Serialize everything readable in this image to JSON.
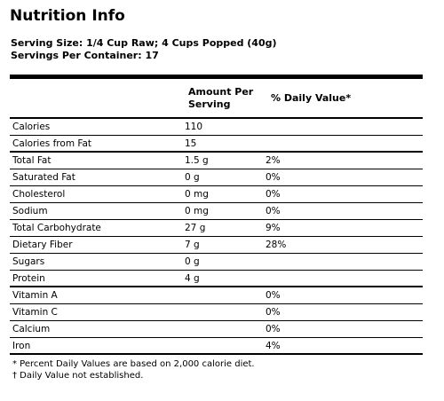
{
  "title": "Nutrition Info",
  "serving_size": "Serving Size: 1/4 Cup Raw; 4 Cups Popped (40g)",
  "servings_per_container": "Servings Per Container: 17",
  "headers": {
    "amount_line1": "Amount Per",
    "amount_line2": "Serving",
    "daily_value": "% Daily Value*"
  },
  "rows": [
    {
      "name": "Calories",
      "amount": "110",
      "dv": ""
    },
    {
      "name": "Calories from Fat",
      "amount": "15",
      "dv": ""
    },
    {
      "name": "Total Fat",
      "amount": "1.5 g",
      "dv": "2%"
    },
    {
      "name": "Saturated Fat",
      "amount": "0 g",
      "dv": "0%"
    },
    {
      "name": "Cholesterol",
      "amount": "0 mg",
      "dv": "0%"
    },
    {
      "name": "Sodium",
      "amount": "0 mg",
      "dv": "0%"
    },
    {
      "name": "Total Carbohydrate",
      "amount": "27 g",
      "dv": "9%"
    },
    {
      "name": "Dietary Fiber",
      "amount": "7 g",
      "dv": "28%"
    },
    {
      "name": "Sugars",
      "amount": "0 g",
      "dv": ""
    },
    {
      "name": "Protein",
      "amount": "4 g",
      "dv": ""
    },
    {
      "name": "Vitamin A",
      "amount": "",
      "dv": "0%"
    },
    {
      "name": "Vitamin C",
      "amount": "",
      "dv": "0%"
    },
    {
      "name": "Calcium",
      "amount": "",
      "dv": "0%"
    },
    {
      "name": "Iron",
      "amount": "",
      "dv": "4%"
    }
  ],
  "footnotes": {
    "daily_values": "* Percent Daily Values are based on 2,000 calorie diet.",
    "not_established": "† Daily Value not established."
  }
}
